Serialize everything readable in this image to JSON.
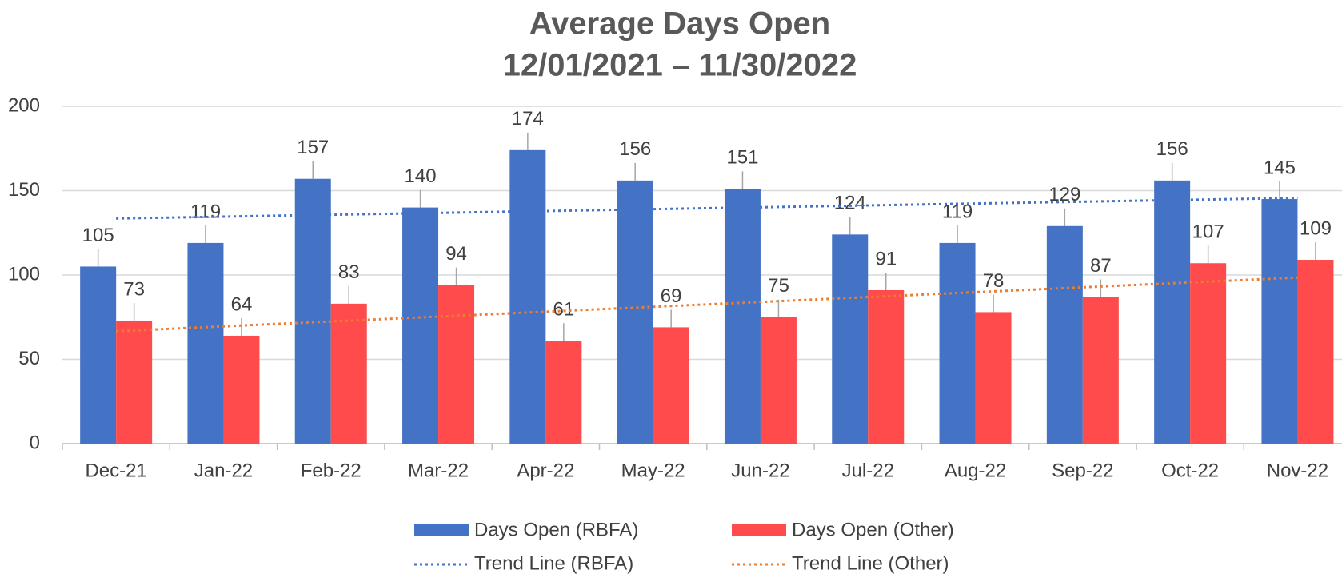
{
  "chart_data": {
    "type": "bar",
    "title": "Average Days Open",
    "subtitle": "12/01/2021 – 11/30/2022",
    "categories": [
      "Dec-21",
      "Jan-22",
      "Feb-22",
      "Mar-22",
      "Apr-22",
      "May-22",
      "Jun-22",
      "Jul-22",
      "Aug-22",
      "Sep-22",
      "Oct-22",
      "Nov-22"
    ],
    "series": [
      {
        "name": "Days Open (RBFA)",
        "color": "#4472c4",
        "values": [
          105,
          119,
          157,
          140,
          174,
          156,
          151,
          124,
          119,
          129,
          156,
          145
        ],
        "trendline": {
          "name": "Trend Line (RBFA)",
          "color": "#4472c4"
        }
      },
      {
        "name": "Days Open (Other)",
        "color": "#ff4b4b",
        "values": [
          73,
          64,
          83,
          94,
          61,
          69,
          75,
          91,
          78,
          87,
          107,
          109
        ],
        "trendline": {
          "name": "Trend Line (Other)",
          "color": "#ed7d31"
        }
      }
    ],
    "ylim": [
      0,
      200
    ],
    "yticks": [
      0,
      50,
      100,
      150,
      200
    ],
    "grid": true,
    "legend": "bottom"
  }
}
